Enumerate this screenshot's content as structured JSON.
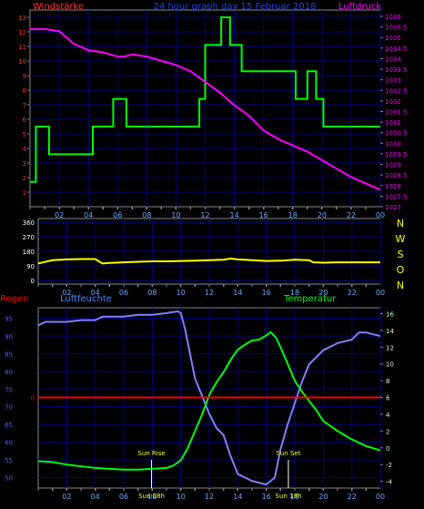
{
  "chart_data": [
    {
      "type": "line",
      "title": "24 hour graph day  15 Februar 2018",
      "left_label": "Windstärke",
      "right_label": "Luftdruck",
      "x_ticks": [
        "02",
        "04",
        "06",
        "08",
        "10",
        "12",
        "14",
        "16",
        "18",
        "20",
        "22",
        "00"
      ],
      "left_axis": {
        "ticks": [
          "1",
          "2",
          "3",
          "4",
          "5",
          "6",
          "7",
          "8",
          "9",
          "10",
          "11",
          "12",
          "13"
        ],
        "ylim": [
          0,
          13.5
        ]
      },
      "right_axis": {
        "ticks": [
          "1027",
          "1027.5",
          "1028",
          "1028.5",
          "1029",
          "1029.5",
          "1030",
          "1030.5",
          "1031",
          "1031.5",
          "1032",
          "1032.5",
          "1033",
          "1033.5",
          "1034",
          "1034.5",
          "1035",
          "1035.5",
          "1036"
        ],
        "ylim": [
          1027,
          1036.3
        ]
      },
      "grid": true,
      "colors": {
        "wind": "#00ff00",
        "pressure": "#ff00ff",
        "grid": "#00008b",
        "left_axis": "#ff3030",
        "right_axis": "#ff00ff",
        "x_axis": "#66aaff"
      },
      "series": [
        {
          "key": "wind",
          "axis": "left",
          "step": true,
          "x": [
            0,
            0.4,
            1.3,
            4.3,
            5.7,
            6.6,
            10,
            11.6,
            12,
            13.1,
            13.7,
            14.5,
            18.2,
            19,
            19.6,
            20.1,
            20.6,
            24
          ],
          "y": [
            1.7,
            5.5,
            3.6,
            5.5,
            7.4,
            5.5,
            5.5,
            7.4,
            11.1,
            13,
            11.1,
            9.3,
            7.4,
            9.3,
            7.4,
            5.5,
            5.5,
            5.5
          ]
        },
        {
          "key": "pressure",
          "axis": "right",
          "x": [
            0,
            1,
            2,
            2.5,
            3,
            4,
            5,
            6,
            6.5,
            7,
            8,
            9,
            10,
            11,
            12,
            13,
            14,
            15,
            16,
            17,
            18,
            19,
            20,
            21,
            22,
            23,
            24
          ],
          "y": [
            1035.4,
            1035.4,
            1035.3,
            1035,
            1034.7,
            1034.4,
            1034.3,
            1034.1,
            1034.1,
            1034.2,
            1034.1,
            1033.9,
            1033.7,
            1033.4,
            1032.9,
            1032.4,
            1031.8,
            1031.3,
            1030.6,
            1030.2,
            1029.9,
            1029.6,
            1029.2,
            1028.8,
            1028.4,
            1028.1,
            1027.8
          ]
        }
      ]
    },
    {
      "type": "line",
      "right_letters": [
        "N",
        "W",
        "S",
        "O",
        "N"
      ],
      "x_ticks": [
        "02",
        "04",
        "06",
        "08",
        "10",
        "12",
        "14",
        "16",
        "18",
        "20",
        "22",
        "00"
      ],
      "left_axis": {
        "ticks": [
          "0",
          "90",
          "180",
          "270",
          "360"
        ],
        "ylim": [
          0,
          360
        ]
      },
      "grid": true,
      "colors": {
        "direction": "#ffff00",
        "grid": "#00008b",
        "left_axis": "#ffffff"
      },
      "series": [
        {
          "key": "direction",
          "axis": "left",
          "x": [
            0,
            0.5,
            1,
            2,
            3,
            4,
            4.5,
            5,
            6,
            7,
            8,
            9,
            10,
            11,
            12,
            13,
            13.5,
            14,
            15,
            16,
            17,
            18,
            19,
            19.3,
            20,
            21,
            22,
            23,
            24
          ],
          "y": [
            105,
            115,
            125,
            130,
            132,
            132,
            105,
            108,
            112,
            115,
            118,
            118,
            120,
            122,
            125,
            128,
            135,
            130,
            125,
            120,
            122,
            128,
            125,
            112,
            110,
            112,
            112,
            112,
            112
          ]
        }
      ]
    },
    {
      "type": "line",
      "labels": {
        "left": "Regen",
        "middle": "Luftfeuchte",
        "right": "Temperatur"
      },
      "x_ticks": [
        "02",
        "04",
        "06",
        "08",
        "10",
        "12",
        "14",
        "16",
        "18",
        "20",
        "22",
        "00"
      ],
      "humidity_axis": {
        "ticks": [
          "50",
          "55",
          "60",
          "65",
          "70",
          "75",
          "80",
          "85",
          "90",
          "95"
        ],
        "ylim": [
          47,
          98
        ]
      },
      "rain_axis": {
        "ticks": [
          "0"
        ],
        "value": 0
      },
      "temperature_axis": {
        "ticks": [
          "-4",
          "-2",
          "0",
          "2",
          "4",
          "6",
          "8",
          "10",
          "12",
          "14",
          "16"
        ],
        "ylim": [
          -4.8,
          16.7
        ]
      },
      "sun": {
        "rise": 7.95,
        "set": 17.55,
        "rise_label": "Sun Rise",
        "set_label": "Sun Set",
        "rise_time": "Sun 08h",
        "set_time": "Sun 18h"
      },
      "grid": true,
      "colors": {
        "humidity": "#8080ff",
        "temperature": "#00ff00",
        "rain": "#ff0000",
        "grid": "#00008b",
        "humidity_axis": "#4060ff",
        "temperature_axis": "#c0ffc0",
        "regen": "#ff0000",
        "temp_label": "#00ff00",
        "hum_label": "#4488ff",
        "sun_label": "#ffff00",
        "sun_line": "#ffffff"
      },
      "series": [
        {
          "key": "humidity",
          "axis": "humidity",
          "x": [
            0,
            0.5,
            1,
            2,
            3,
            4,
            4.5,
            5,
            6,
            7,
            8,
            9,
            9.8,
            10,
            10.3,
            10.7,
            11,
            11.5,
            12,
            12.5,
            13,
            13.5,
            14,
            15,
            16,
            16.3,
            16.6,
            17,
            17.5,
            18,
            18.5,
            19,
            19.5,
            20,
            21,
            22,
            22.5,
            23,
            24
          ],
          "y": [
            93,
            94,
            94,
            94,
            94.5,
            94.5,
            95.5,
            95.5,
            95.5,
            96,
            96,
            96.5,
            97,
            96.5,
            92,
            84,
            78,
            73,
            68,
            64,
            62,
            56,
            51,
            49,
            48,
            49,
            50,
            58,
            65,
            71,
            77,
            82,
            84,
            86,
            88,
            89,
            91,
            91,
            90
          ]
        },
        {
          "key": "temperature",
          "axis": "temperature",
          "x": [
            0,
            1,
            2,
            3,
            4,
            5,
            6,
            7,
            8,
            9,
            9.5,
            10,
            10.5,
            11,
            11.5,
            12,
            12.5,
            13,
            13.5,
            14,
            14.5,
            15,
            15.5,
            16,
            16.3,
            16.7,
            17,
            17.5,
            18,
            18.5,
            19,
            19.5,
            20,
            21,
            22,
            23,
            24
          ],
          "y": [
            -1.6,
            -1.7,
            -2,
            -2.2,
            -2.4,
            -2.5,
            -2.6,
            -2.6,
            -2.5,
            -2.4,
            -2.1,
            -1.5,
            0,
            2,
            4,
            6.3,
            7.8,
            9,
            10.5,
            11.7,
            12.3,
            12.8,
            12.9,
            13.4,
            13.8,
            13.1,
            12,
            10,
            8,
            6.7,
            5.6,
            4.5,
            3.2,
            2,
            1,
            0.2,
            -0.3
          ]
        },
        {
          "key": "rain",
          "axis": "rain",
          "x": [
            0,
            24
          ],
          "y": [
            0,
            0
          ]
        }
      ]
    }
  ]
}
